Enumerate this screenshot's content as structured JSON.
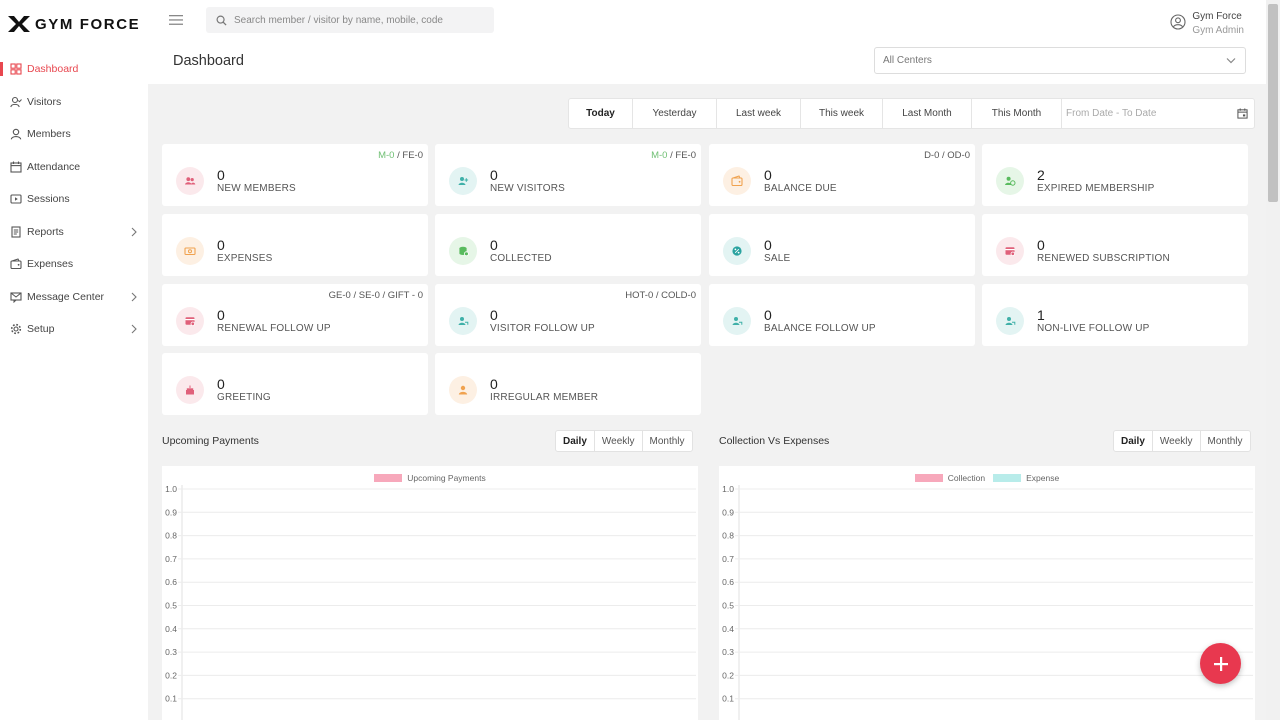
{
  "app": {
    "brand": "GYM FORCE",
    "accent": "#e8474f"
  },
  "sidebar": {
    "items": [
      {
        "label": "Dashboard",
        "icon": "grid-icon",
        "active": true
      },
      {
        "label": "Visitors",
        "icon": "user-check-icon"
      },
      {
        "label": "Members",
        "icon": "user-icon"
      },
      {
        "label": "Attendance",
        "icon": "calendar-icon"
      },
      {
        "label": "Sessions",
        "icon": "play-icon"
      },
      {
        "label": "Reports",
        "icon": "document-icon",
        "expandable": true
      },
      {
        "label": "Expenses",
        "icon": "wallet-icon"
      },
      {
        "label": "Message Center",
        "icon": "message-icon",
        "expandable": true
      },
      {
        "label": "Setup",
        "icon": "gear-icon",
        "expandable": true
      }
    ]
  },
  "header": {
    "search_placeholder": "Search member / visitor by name, mobile, code",
    "user_name": "Gym Force",
    "user_role": "Gym Admin",
    "page_title": "Dashboard",
    "center_select": "All Centers"
  },
  "filters": {
    "buttons": [
      "Today",
      "Yesterday",
      "Last week",
      "This week",
      "Last Month",
      "This Month"
    ],
    "active": "Today",
    "date_placeholder": "From Date - To Date"
  },
  "cards": [
    {
      "value": "0",
      "label": "NEW MEMBERS",
      "meta_green": "M-0",
      "meta_rest": " / FE-0",
      "icon": "users-icon",
      "bg": "#fbe9ec",
      "fg": "#e0607a"
    },
    {
      "value": "0",
      "label": "NEW VISITORS",
      "meta_green": "M-0",
      "meta_rest": " / FE-0",
      "icon": "user-plus-icon",
      "bg": "#e3f4f3",
      "fg": "#3fb0a8"
    },
    {
      "value": "0",
      "label": "BALANCE DUE",
      "meta_green": "",
      "meta_rest": "D-0 / OD-0",
      "icon": "wallet-icon",
      "bg": "#fdf0e3",
      "fg": "#f0a24f"
    },
    {
      "value": "2",
      "label": "EXPIRED MEMBERSHIP",
      "meta_green": "",
      "meta_rest": "",
      "icon": "user-clock-icon",
      "bg": "#e6f6e7",
      "fg": "#59bb5e"
    },
    {
      "value": "0",
      "label": "EXPENSES",
      "meta_green": "",
      "meta_rest": "",
      "icon": "cash-icon",
      "bg": "#fdf0e3",
      "fg": "#f0a24f"
    },
    {
      "value": "0",
      "label": "COLLECTED",
      "meta_green": "",
      "meta_rest": "",
      "icon": "coins-icon",
      "bg": "#e6f6e7",
      "fg": "#59bb5e"
    },
    {
      "value": "0",
      "label": "SALE",
      "meta_green": "",
      "meta_rest": "",
      "icon": "sale-icon",
      "bg": "#e3f4f3",
      "fg": "#2aa3a0"
    },
    {
      "value": "0",
      "label": "RENEWED SUBSCRIPTION",
      "meta_green": "",
      "meta_rest": "",
      "icon": "card-icon",
      "bg": "#fbe9ec",
      "fg": "#e0607a"
    },
    {
      "value": "0",
      "label": "RENEWAL FOLLOW UP",
      "meta_green": "",
      "meta_rest": "GE-0 / SE-0 / GIFT - 0",
      "icon": "card-icon",
      "bg": "#fbe9ec",
      "fg": "#e0607a"
    },
    {
      "value": "0",
      "label": "VISITOR FOLLOW UP",
      "meta_green": "",
      "meta_rest": "HOT-0 / COLD-0",
      "icon": "user-follow-icon",
      "bg": "#e3f4f3",
      "fg": "#3fb0a8"
    },
    {
      "value": "0",
      "label": "BALANCE FOLLOW UP",
      "meta_green": "",
      "meta_rest": "",
      "icon": "user-follow-icon",
      "bg": "#e3f4f3",
      "fg": "#3fb0a8"
    },
    {
      "value": "1",
      "label": "NON-LIVE FOLLOW UP",
      "meta_green": "",
      "meta_rest": "",
      "icon": "user-follow-icon",
      "bg": "#e3f4f3",
      "fg": "#3fb0a8"
    },
    {
      "value": "0",
      "label": "GREETING",
      "meta_green": "",
      "meta_rest": "",
      "icon": "cake-icon",
      "bg": "#fbe9ec",
      "fg": "#e0607a"
    },
    {
      "value": "0",
      "label": "IRREGULAR MEMBER",
      "meta_green": "",
      "meta_rest": "",
      "icon": "user-alert-icon",
      "bg": "#fdf0e3",
      "fg": "#f0a24f"
    }
  ],
  "sections": {
    "upcoming": {
      "title": "Upcoming Payments",
      "periods": [
        "Daily",
        "Weekly",
        "Monthly"
      ],
      "active": "Daily"
    },
    "collection": {
      "title": "Collection Vs Expenses",
      "periods": [
        "Daily",
        "Weekly",
        "Monthly"
      ],
      "active": "Daily"
    }
  },
  "chart_data": [
    {
      "type": "bar",
      "title": "",
      "categories": [],
      "series": [
        {
          "name": "Upcoming Payments",
          "values": [],
          "color": "#f7a8bb"
        }
      ],
      "ylim": [
        0,
        1.0
      ],
      "yticks": [
        "1.0",
        "0.9",
        "0.8",
        "0.7",
        "0.6",
        "0.5",
        "0.4",
        "0.3",
        "0.2",
        "0.1"
      ],
      "grid": true,
      "legend": "top-center"
    },
    {
      "type": "bar",
      "title": "",
      "categories": [],
      "series": [
        {
          "name": "Collection",
          "values": [],
          "color": "#f7a8bb"
        },
        {
          "name": "Expense",
          "values": [],
          "color": "#b8ecea"
        }
      ],
      "ylim": [
        0,
        1.0
      ],
      "yticks": [
        "1.0",
        "0.9",
        "0.8",
        "0.7",
        "0.6",
        "0.5",
        "0.4",
        "0.3",
        "0.2",
        "0.1"
      ],
      "grid": true,
      "legend": "top-center"
    }
  ]
}
